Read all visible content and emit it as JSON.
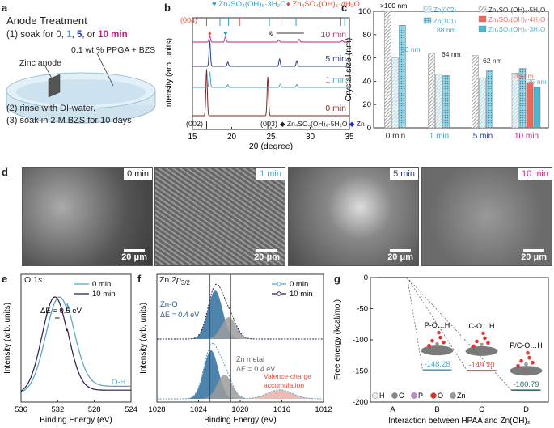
{
  "panel_a": {
    "label": "a",
    "title": "Anode Treatment",
    "step1_pre": "(1) soak for ",
    "t0": "0",
    "t1": "1",
    "t5": "5",
    "t10": "10 min",
    "step1_sep": ", ",
    "step1_or": ", or ",
    "solution": "0.1 wt.% PPGA + BZS",
    "anode": "Zinc anode",
    "step2": "(2) rinse with DI-water.",
    "step3": "(3) soak in 2 M BZS for 10 days"
  },
  "panel_b": {
    "label": "b",
    "legend_top_a": "Zn₄SO₄(OH)₆·3H₂O",
    "legend_top_b": "Zn₄SO₄(OH)₆·4H₂O",
    "legend_bottom_a": "Zn₄SO₄(OH)₆·5H₂O",
    "legend_bottom_b": "Zn",
    "peak_004": "(004)",
    "peak_002": "(002)",
    "peak_003": "(003)",
    "shift_amp": "&",
    "ylabel": "Intensity (arb. units)",
    "xlabel": "2θ (degree)",
    "colors": {
      "c10": "#c0267a",
      "c5": "#2a3d8f",
      "c1": "#4fa3c6",
      "c0": "#7a2a2a",
      "red": "#e34a3a",
      "cyan": "#2aa3c6",
      "blue": "#1b2bd6"
    }
  },
  "panel_c": {
    "label": "c",
    "top_label": ">100 nm",
    "legend_zn002": "Zn(002)",
    "legend_zn101": "Zn(101)",
    "legend_5h": "Zn₄SO₄(OH)₆·5H₂O",
    "legend_4h": "Zn₄SO₄(OH)₆·4H₂O",
    "legend_3h": "Zn₄SO₄(OH)₆·3H₂O",
    "ylabel": "Crystal size (nm)",
    "annotations": [
      "88 nm",
      "60 nm",
      "64 nm",
      "62 nm",
      "39 nm",
      "35 nm"
    ],
    "colors": {
      "gray": "#8c8c8c",
      "red": "#e86a5e",
      "cyan": "#4bb8d0",
      "light": "#bfe3ee",
      "c0": "#333333",
      "c1": "#4fa3c6",
      "c5": "#2a3d8f",
      "c10": "#c0267a"
    }
  },
  "panel_d": {
    "label": "d",
    "images": [
      {
        "tag": "0 min",
        "scale": "20 μm",
        "color": "#333333"
      },
      {
        "tag": "1 min",
        "scale": "20 μm",
        "color": "#4fa3c6"
      },
      {
        "tag": "5 min",
        "scale": "20 μm",
        "color": "#2a3d8f"
      },
      {
        "tag": "10 min",
        "scale": "20 μm",
        "color": "#c0267a"
      }
    ]
  },
  "panel_e": {
    "label": "e",
    "title_pre": "O 1",
    "title_s": "s",
    "legend0": "0 min",
    "legend10": "10 min",
    "shift": "ΔE = 0.5 eV",
    "oh": "O-H",
    "ylabel": "Intensity (arb. units)",
    "xlabel": "Binding Energy (eV)"
  },
  "panel_f": {
    "label": "f",
    "title_pre": "Zn 2",
    "title_p": "p",
    "title_sub": "3/2",
    "legend0": "0 min",
    "legend10": "10 min",
    "zno": "Zn-O",
    "zno_shift": "ΔE = 0.4 eV",
    "znmetal": "Zn metal",
    "znmetal_shift": "ΔE = 0.4 eV",
    "valence1": "Valence-charge",
    "valence2": "accumulation",
    "ylabel": "Intensity (arb. units)",
    "xlabel": "Binding Energy (eV)"
  },
  "panel_g": {
    "label": "g",
    "ylabel": "Free energy (kcal/mol)",
    "xlabel": "Interaction between HPAA and Zn(OH)₂",
    "labels": [
      "P-O…H",
      "C-O…H",
      "P/C-O…H"
    ],
    "values_text": [
      "-148.28",
      "-149.20",
      "-180.79"
    ],
    "atoms": [
      "H",
      "C",
      "P",
      "O",
      "Zn"
    ]
  },
  "chart_data": [
    {
      "id": "b",
      "type": "line",
      "xlabel": "2θ (degree)",
      "ylabel": "Intensity (arb. units)",
      "xlim": [
        15,
        35
      ],
      "x_ticks": [
        15,
        20,
        25,
        30,
        35
      ],
      "series": [
        {
          "name": "0 min",
          "peaks": [
            [
              16.8,
              0.9
            ],
            [
              24.6,
              0.75
            ]
          ]
        },
        {
          "name": "1 min",
          "peaks": [
            [
              17.2,
              0.55
            ],
            [
              19.5,
              0.1
            ],
            [
              26.2,
              0.12
            ],
            [
              28.3,
              0.1
            ]
          ]
        },
        {
          "name": "5 min",
          "peaks": [
            [
              17.2,
              0.7
            ],
            [
              19.5,
              0.12
            ],
            [
              26.1,
              0.2
            ],
            [
              28.3,
              0.15
            ]
          ]
        },
        {
          "name": "10 min",
          "peaks": [
            [
              17.2,
              0.35
            ],
            [
              19.2,
              0.3
            ],
            [
              26.0,
              0.12
            ],
            [
              28.6,
              0.15
            ],
            [
              34.1,
              0.08
            ]
          ]
        }
      ]
    },
    {
      "id": "c",
      "type": "bar",
      "ylabel": "Crystal size (nm)",
      "ylim": [
        0,
        100
      ],
      "y_ticks": [
        0,
        20,
        40,
        60,
        80,
        100
      ],
      "categories": [
        "0 min",
        "1 min",
        "5 min",
        "10 min"
      ],
      "series": [
        {
          "name": "Zn₄SO₄(OH)₆·5H₂O",
          "values": [
            100,
            64,
            62,
            null
          ]
        },
        {
          "name": "Zn(002)",
          "values": [
            60,
            46,
            43,
            47
          ]
        },
        {
          "name": "Zn(101)",
          "values": [
            88,
            45,
            49,
            51
          ]
        },
        {
          "name": "Zn₄SO₄(OH)₆·4H₂O",
          "values": [
            null,
            null,
            null,
            39
          ]
        },
        {
          "name": "Zn₄SO₄(OH)₆·3H₂O",
          "values": [
            null,
            null,
            null,
            35
          ]
        }
      ]
    },
    {
      "id": "e",
      "type": "line",
      "xlabel": "Binding Energy (eV)",
      "ylabel": "Intensity (arb. units)",
      "xlim": [
        536,
        524
      ],
      "x_ticks": [
        536,
        532,
        528,
        524
      ],
      "series": [
        {
          "name": "0 min",
          "center": 531.8,
          "width": 1.5
        },
        {
          "name": "10 min",
          "center": 532.3,
          "width": 1.4
        }
      ]
    },
    {
      "id": "f",
      "type": "line",
      "xlabel": "Binding Energy (eV)",
      "ylabel": "Intensity (arb. units)",
      "xlim": [
        1028,
        1012
      ],
      "x_ticks": [
        1028,
        1024,
        1020,
        1016,
        1012
      ],
      "series": [
        {
          "name": "0 min",
          "peaks": [
            [
              1022.8,
              1.0
            ],
            [
              1021.5,
              0.5
            ],
            [
              1016.2,
              0.18
            ]
          ]
        },
        {
          "name": "10 min",
          "peaks": [
            [
              1022.4,
              1.0
            ],
            [
              1021.1,
              0.45
            ]
          ]
        }
      ]
    },
    {
      "id": "g",
      "type": "line",
      "xlabel": "Interaction between HPAA and Zn(OH)₂",
      "ylabel": "Free energy (kcal/mol)",
      "ylim": [
        -200,
        0
      ],
      "y_ticks": [
        0,
        -50,
        -100,
        -150,
        -200
      ],
      "categories": [
        "A",
        "B",
        "C",
        "D"
      ],
      "values": [
        0,
        -148.28,
        -149.2,
        -180.79
      ]
    }
  ]
}
